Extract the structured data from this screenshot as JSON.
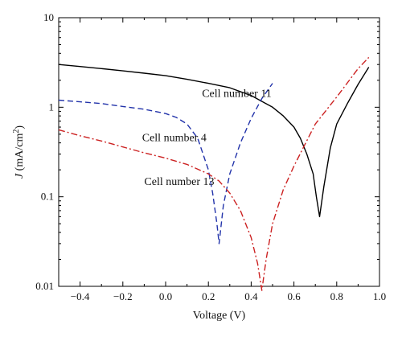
{
  "chart_data": {
    "type": "line",
    "xlabel": "Voltage (V)",
    "ylabel": "J (mA/cm²)",
    "ylabel_parts": {
      "symbol": "J",
      "unit_pre": " (mA/cm",
      "sup": "2",
      "unit_post": ")"
    },
    "xlim": [
      -0.5,
      1.0
    ],
    "ylim": [
      0.01,
      10
    ],
    "yscale": "log",
    "grid": false,
    "x_ticks": [
      -0.4,
      -0.2,
      0.0,
      0.2,
      0.4,
      0.6,
      0.8,
      1.0
    ],
    "x_tick_labels": [
      "−0.4",
      "−0.2",
      "0.0",
      "0.2",
      "0.4",
      "0.6",
      "0.8",
      "1.0"
    ],
    "y_ticks": [
      0.01,
      0.1,
      1,
      10
    ],
    "y_tick_labels": [
      "0.01",
      "0.1",
      "1",
      "10"
    ],
    "series": [
      {
        "name": "Cell number 11",
        "color": "#000000",
        "dash": "solid",
        "x": [
          -0.5,
          -0.4,
          -0.3,
          -0.2,
          -0.1,
          0.0,
          0.1,
          0.2,
          0.3,
          0.4,
          0.5,
          0.55,
          0.6,
          0.63,
          0.66,
          0.69,
          0.705,
          0.72,
          0.74,
          0.77,
          0.8,
          0.85,
          0.9,
          0.95
        ],
        "y": [
          3.0,
          2.85,
          2.7,
          2.55,
          2.4,
          2.25,
          2.05,
          1.85,
          1.65,
          1.35,
          1.0,
          0.8,
          0.6,
          0.45,
          0.3,
          0.18,
          0.1,
          0.06,
          0.13,
          0.35,
          0.65,
          1.1,
          1.8,
          2.8
        ]
      },
      {
        "name": "Cell number 4",
        "color": "#2233aa",
        "dash": "dashed",
        "x": [
          -0.5,
          -0.4,
          -0.3,
          -0.2,
          -0.1,
          0.0,
          0.05,
          0.1,
          0.15,
          0.2,
          0.22,
          0.24,
          0.25,
          0.27,
          0.3,
          0.35,
          0.4,
          0.45,
          0.5
        ],
        "y": [
          1.2,
          1.15,
          1.1,
          1.02,
          0.95,
          0.85,
          0.77,
          0.65,
          0.45,
          0.2,
          0.11,
          0.05,
          0.03,
          0.08,
          0.18,
          0.4,
          0.75,
          1.25,
          1.85
        ]
      },
      {
        "name": "Cell number 13",
        "color": "#cc2222",
        "dash": "dashdot",
        "x": [
          -0.5,
          -0.4,
          -0.3,
          -0.2,
          -0.1,
          0.0,
          0.1,
          0.2,
          0.25,
          0.3,
          0.35,
          0.4,
          0.43,
          0.45,
          0.47,
          0.5,
          0.55,
          0.6,
          0.7,
          0.8,
          0.9,
          0.95
        ],
        "y": [
          0.56,
          0.48,
          0.42,
          0.36,
          0.31,
          0.27,
          0.23,
          0.18,
          0.15,
          0.11,
          0.07,
          0.035,
          0.018,
          0.009,
          0.02,
          0.05,
          0.12,
          0.22,
          0.65,
          1.3,
          2.7,
          3.6
        ]
      }
    ],
    "annotations": [
      {
        "text": "Cell number 11",
        "x": 0.17,
        "y": 1.3
      },
      {
        "text": "Cell number 4",
        "x": -0.11,
        "y": 0.42
      },
      {
        "text": "Cell number 13",
        "x": -0.1,
        "y": 0.135
      }
    ]
  }
}
